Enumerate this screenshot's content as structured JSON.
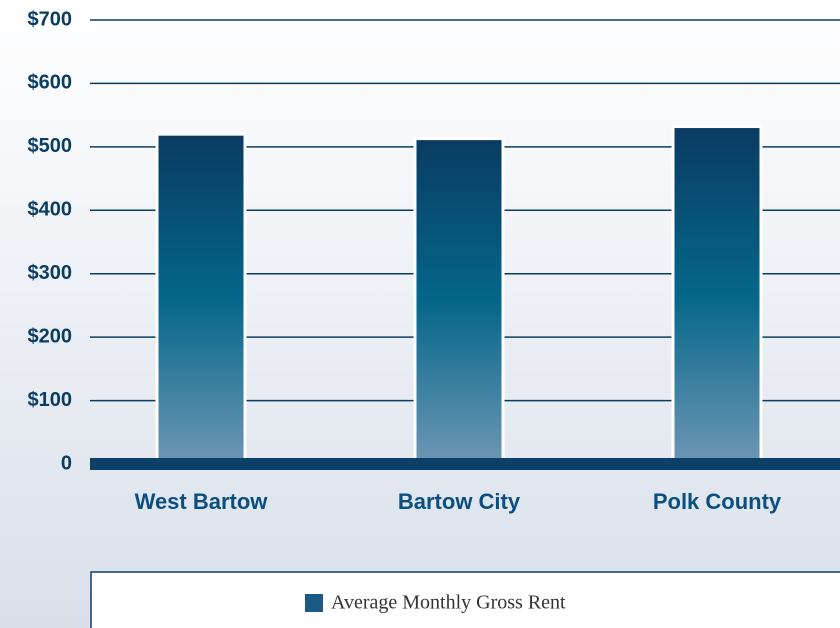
{
  "chart_data": {
    "type": "bar",
    "categories": [
      "West Bartow",
      "Bartow City",
      "Polk County"
    ],
    "series": [
      {
        "name": "Average Monthly Gross Rent",
        "color": "#1a5a85",
        "values": [
          520,
          513,
          532
        ]
      }
    ],
    "ylim": [
      0,
      700
    ],
    "yticks": [
      0,
      {
        "value": 100,
        "label": "$100"
      },
      {
        "value": 200,
        "label": "$200"
      },
      {
        "value": 300,
        "label": "$300"
      },
      {
        "value": 400,
        "label": "$400"
      },
      {
        "value": 500,
        "label": "$500"
      },
      {
        "value": 600,
        "label": "$600"
      },
      {
        "value": 700,
        "label": "$700"
      }
    ],
    "grid": true,
    "legend": "bottom"
  }
}
